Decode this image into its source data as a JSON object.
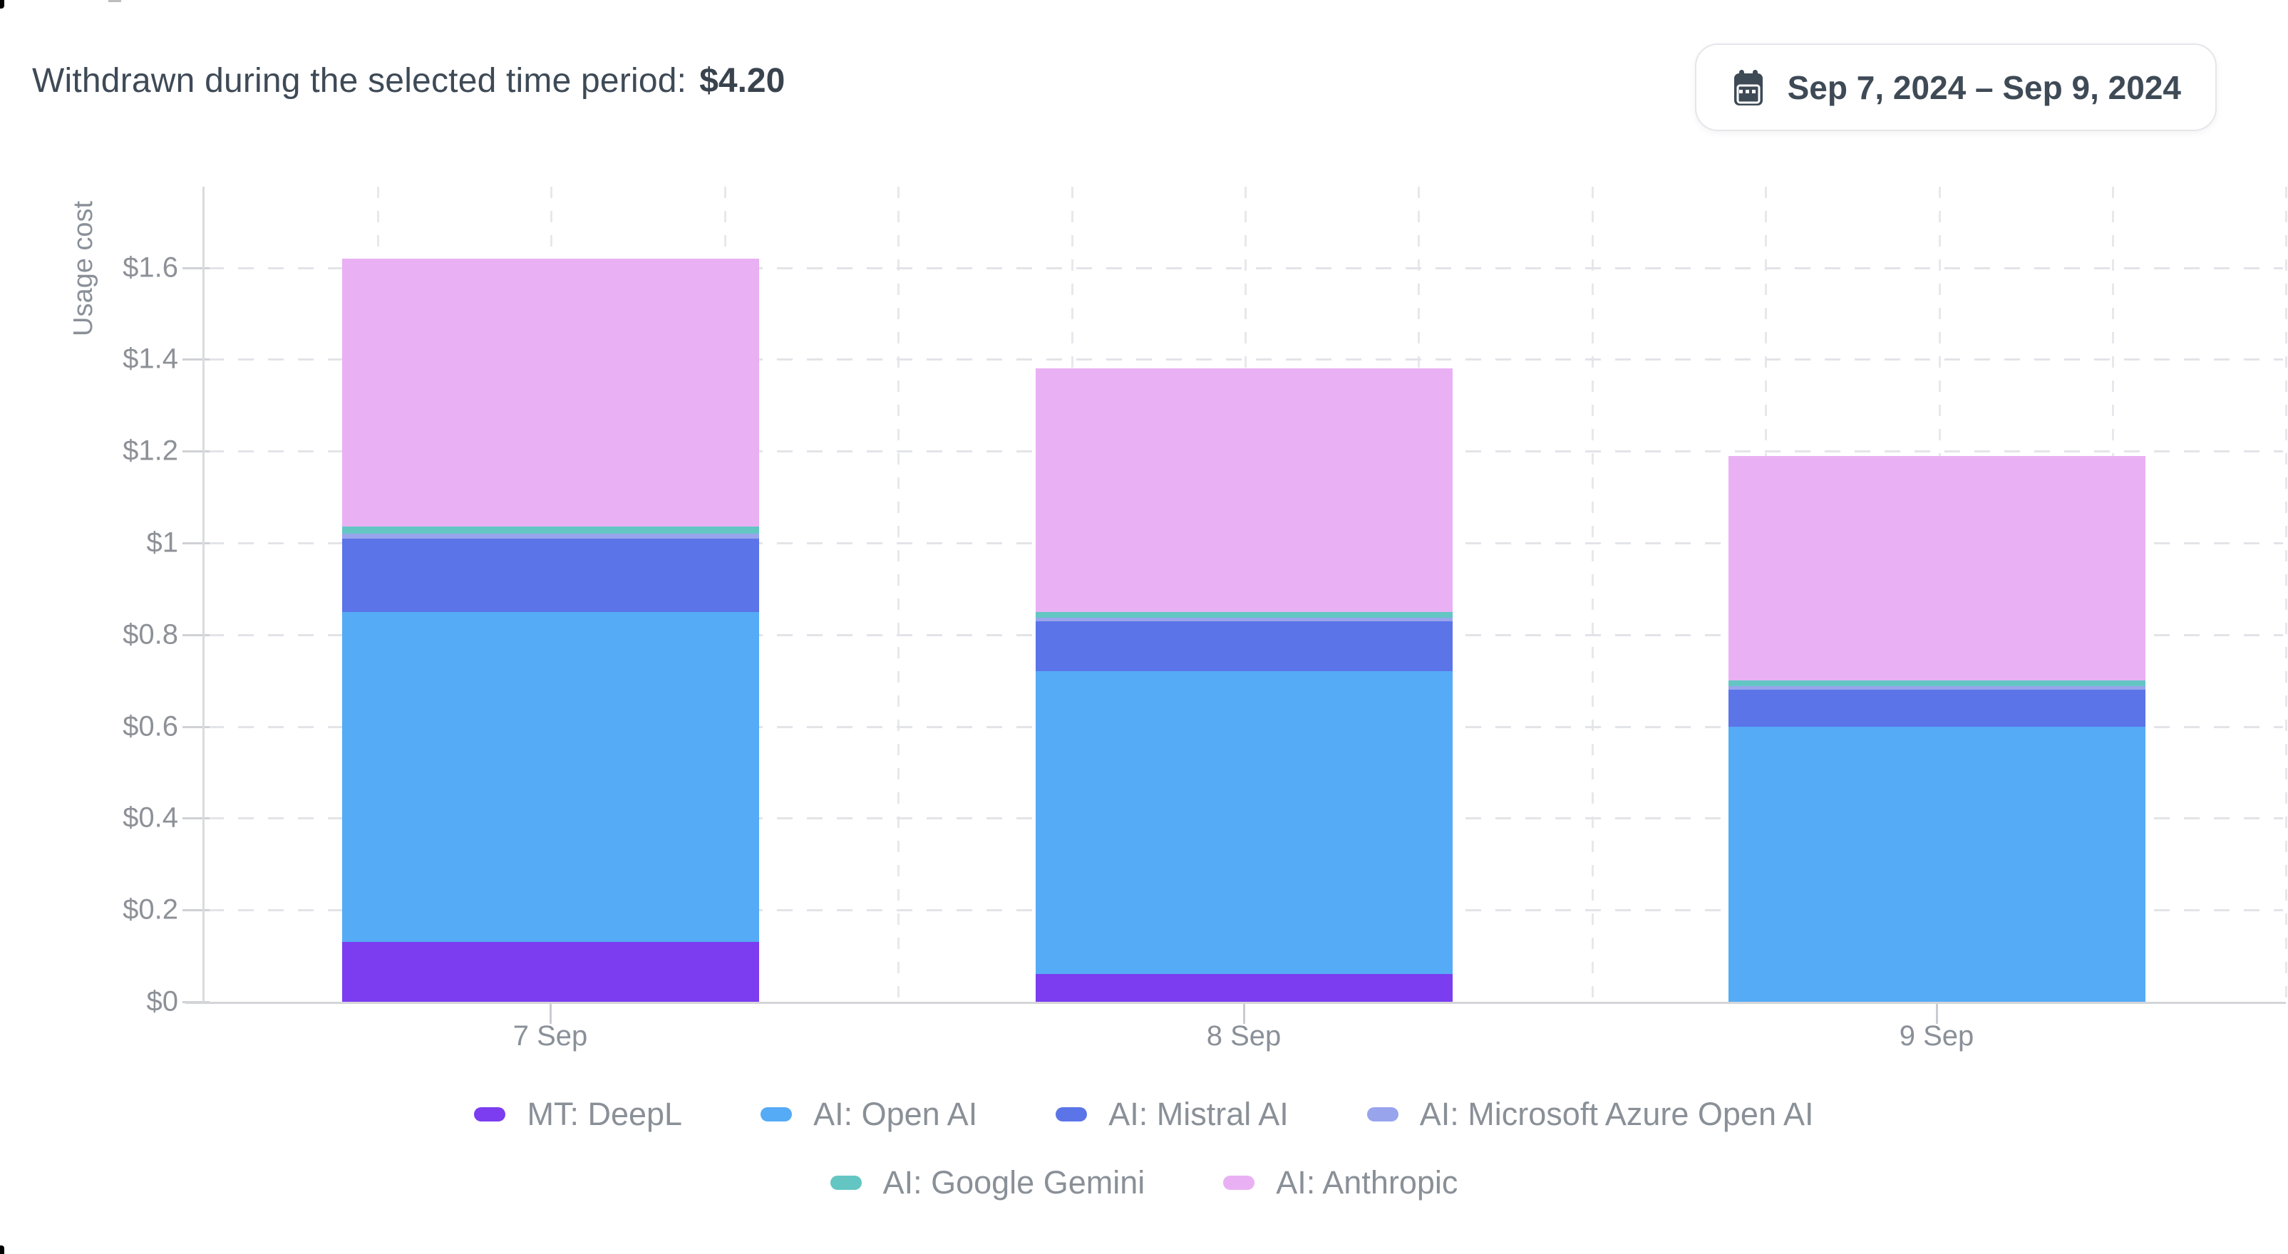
{
  "header": {
    "label": "Withdrawn during the selected time period:",
    "value": "$4.20"
  },
  "date_picker": {
    "label": "Sep 7, 2024 – Sep 9, 2024",
    "icon": "calendar-icon"
  },
  "chart_data": {
    "type": "bar",
    "stacked": true,
    "ylabel": "Usage cost",
    "categories": [
      "7 Sep",
      "8 Sep",
      "9 Sep"
    ],
    "series": [
      {
        "name": "MT: DeepL",
        "color": "#7b3def",
        "values": [
          0.13,
          0.06,
          0
        ]
      },
      {
        "name": "AI: Open AI",
        "color": "#55abf5",
        "values": [
          0.72,
          0.66,
          0.6
        ]
      },
      {
        "name": "AI: Mistral AI",
        "color": "#5b74e8",
        "values": [
          0.16,
          0.11,
          0.08
        ]
      },
      {
        "name": "AI: Microsoft Azure Open AI",
        "color": "#98a4ec",
        "values": [
          0.01,
          0.007,
          0.008
        ]
      },
      {
        "name": "AI: Google Gemini",
        "color": "#63c6c3",
        "values": [
          0.015,
          0.013,
          0.012
        ]
      },
      {
        "name": "AI: Anthropic",
        "color": "#e9b1f3",
        "values": [
          0.585,
          0.53,
          0.49
        ]
      }
    ],
    "bar_totals": [
      1.62,
      1.38,
      1.19
    ],
    "y_ticks": [
      "$0",
      "$0.2",
      "$0.4",
      "$0.6",
      "$0.8",
      "$1",
      "$1.2",
      "$1.4",
      "$1.6"
    ],
    "y_tick_values": [
      0,
      0.2,
      0.4,
      0.6,
      0.8,
      1.0,
      1.2,
      1.4,
      1.6
    ],
    "ylim": [
      0,
      1.78
    ],
    "grid": true,
    "legend_position": "bottom",
    "legend_rows": [
      [
        0,
        1,
        2,
        3
      ],
      [
        4,
        5
      ]
    ]
  }
}
